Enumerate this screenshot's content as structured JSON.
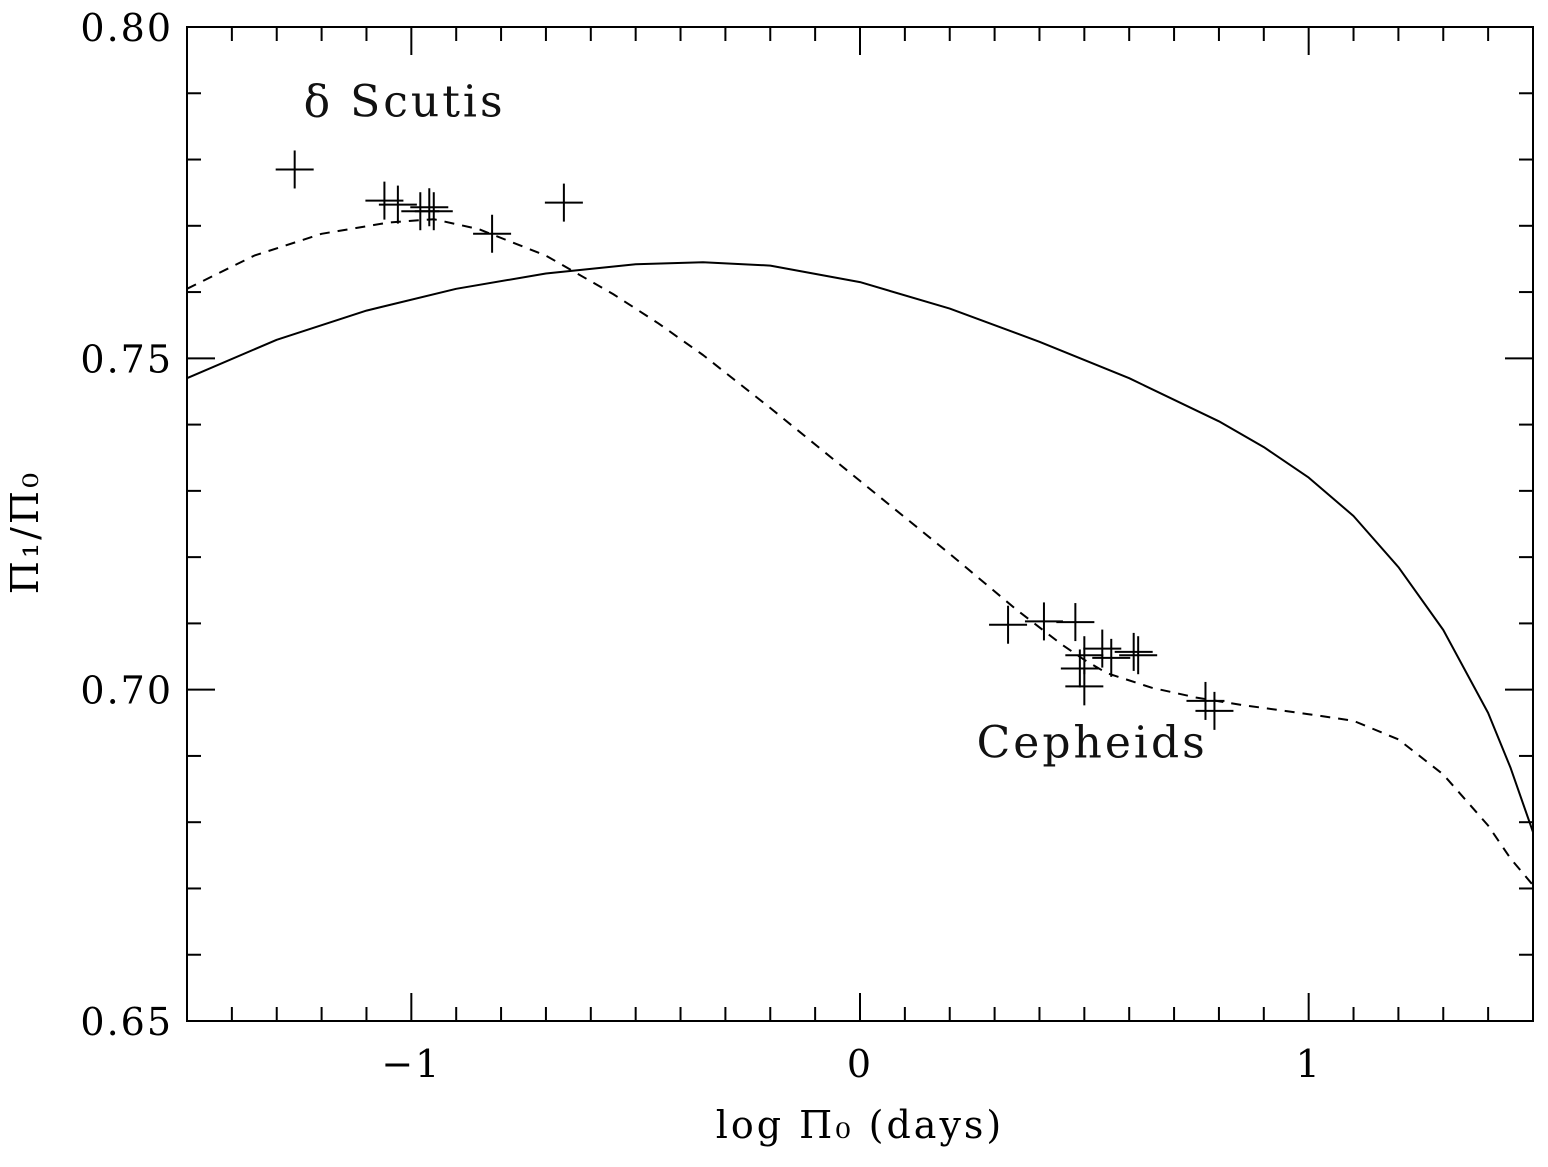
{
  "chart_data": {
    "type": "scatter",
    "xlabel": "log Π₀ (days)",
    "ylabel": "Π₁/Π₀",
    "xlim": [
      -1.5,
      1.5
    ],
    "ylim": [
      0.65,
      0.8
    ],
    "x_ticks": [
      {
        "value": -1,
        "label": "−1"
      },
      {
        "value": 0,
        "label": "0"
      },
      {
        "value": 1,
        "label": "1"
      }
    ],
    "y_ticks": [
      {
        "value": 0.65,
        "label": "0.65"
      },
      {
        "value": 0.7,
        "label": "0.70"
      },
      {
        "value": 0.75,
        "label": "0.75"
      },
      {
        "value": 0.8,
        "label": "0.80"
      }
    ],
    "x_minor_ticks": [
      -1.4,
      -1.3,
      -1.2,
      -1.1,
      -0.9,
      -0.8,
      -0.7,
      -0.6,
      -0.5,
      -0.4,
      -0.3,
      -0.2,
      -0.1,
      0.1,
      0.2,
      0.3,
      0.4,
      0.5,
      0.6,
      0.7,
      0.8,
      0.9,
      1.1,
      1.2,
      1.3,
      1.4
    ],
    "y_minor_ticks": [
      0.66,
      0.67,
      0.68,
      0.69,
      0.71,
      0.72,
      0.73,
      0.74,
      0.76,
      0.77,
      0.78,
      0.79
    ],
    "annotations": [
      {
        "text": "δ Scutis",
        "x": -1.24,
        "y": 0.7865
      },
      {
        "text": "Cepheids",
        "x": 0.26,
        "y": 0.6898
      }
    ],
    "series": [
      {
        "style": "solid",
        "points": [
          [
            -1.5,
            0.747
          ],
          [
            -1.3,
            0.7528
          ],
          [
            -1.1,
            0.7572
          ],
          [
            -0.9,
            0.7605
          ],
          [
            -0.7,
            0.7628
          ],
          [
            -0.5,
            0.7642
          ],
          [
            -0.35,
            0.7645
          ],
          [
            -0.2,
            0.764
          ],
          [
            0.0,
            0.7615
          ],
          [
            0.2,
            0.7575
          ],
          [
            0.4,
            0.7525
          ],
          [
            0.6,
            0.747
          ],
          [
            0.8,
            0.7405
          ],
          [
            0.9,
            0.7366
          ],
          [
            1.0,
            0.732
          ],
          [
            1.1,
            0.7262
          ],
          [
            1.2,
            0.7185
          ],
          [
            1.3,
            0.709
          ],
          [
            1.4,
            0.6965
          ],
          [
            1.45,
            0.6882
          ],
          [
            1.5,
            0.6785
          ]
        ]
      },
      {
        "style": "dashed",
        "points": [
          [
            -1.5,
            0.7605
          ],
          [
            -1.35,
            0.7655
          ],
          [
            -1.2,
            0.7688
          ],
          [
            -1.05,
            0.7705
          ],
          [
            -0.95,
            0.771
          ],
          [
            -0.85,
            0.7695
          ],
          [
            -0.7,
            0.7655
          ],
          [
            -0.55,
            0.7597
          ],
          [
            -0.45,
            0.7553
          ],
          [
            -0.35,
            0.7505
          ],
          [
            -0.2,
            0.7425
          ],
          [
            0.0,
            0.7315
          ],
          [
            0.2,
            0.7205
          ],
          [
            0.35,
            0.712
          ],
          [
            0.45,
            0.7068
          ],
          [
            0.5,
            0.7045
          ],
          [
            0.55,
            0.7025
          ],
          [
            0.65,
            0.7003
          ],
          [
            0.75,
            0.6988
          ],
          [
            0.85,
            0.6977
          ],
          [
            1.0,
            0.6963
          ],
          [
            1.1,
            0.6953
          ],
          [
            1.2,
            0.6925
          ],
          [
            1.3,
            0.6872
          ],
          [
            1.4,
            0.6795
          ],
          [
            1.45,
            0.6745
          ],
          [
            1.5,
            0.6705
          ]
        ]
      },
      {
        "style": "markers",
        "marker": "plus",
        "points": [
          [
            -1.26,
            0.7785
          ],
          [
            -1.06,
            0.7738
          ],
          [
            -1.03,
            0.7732
          ],
          [
            -0.98,
            0.7722
          ],
          [
            -0.96,
            0.7728
          ],
          [
            -0.95,
            0.7722
          ],
          [
            -0.82,
            0.7688
          ],
          [
            -0.66,
            0.7735
          ],
          [
            0.33,
            0.7098
          ],
          [
            0.41,
            0.7103
          ],
          [
            0.48,
            0.7102
          ],
          [
            0.49,
            0.7032
          ],
          [
            0.5,
            0.7052
          ],
          [
            0.5,
            0.7005
          ],
          [
            0.54,
            0.7062
          ],
          [
            0.56,
            0.7048
          ],
          [
            0.61,
            0.7057
          ],
          [
            0.62,
            0.7052
          ],
          [
            0.77,
            0.6983
          ],
          [
            0.79,
            0.6968
          ]
        ]
      }
    ]
  }
}
